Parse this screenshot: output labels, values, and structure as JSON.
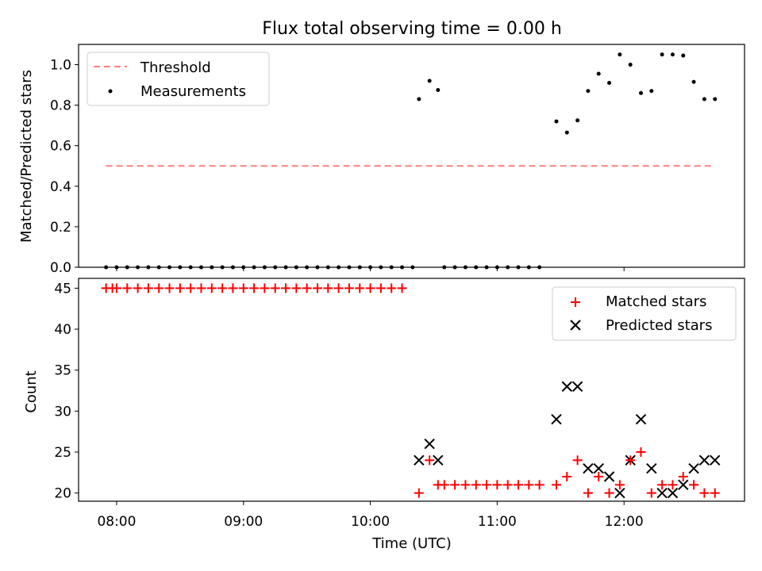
{
  "title": "Flux total observing time = 0.00 h",
  "xlabel": "Time (UTC)",
  "x_tick_labels": [
    "08:00",
    "09:00",
    "10:00",
    "11:00",
    "12:00"
  ],
  "top_ylabel": "Matched/Predicted stars",
  "bottom_ylabel": "Count",
  "top_legend": {
    "threshold": "Threshold",
    "measurements": "Measurements"
  },
  "bottom_legend": {
    "matched": "Matched stars",
    "predicted": "Predicted stars"
  },
  "colors": {
    "threshold": "#ff7f7f",
    "measurements": "#000000",
    "matched": "#ff0000",
    "predicted": "#000000"
  },
  "chart_data": [
    {
      "type": "scatter",
      "title": "Flux total observing time = 0.00 h",
      "ylabel": "Matched/Predicted stars",
      "xlim": [
        "07:42",
        "12:57"
      ],
      "ylim": [
        0,
        1.1
      ],
      "y_ticks": [
        0.0,
        0.2,
        0.4,
        0.6,
        0.8,
        1.0
      ],
      "x_ticks": [
        "08:00",
        "09:00",
        "10:00",
        "11:00",
        "12:00"
      ],
      "legend_position": "top-left",
      "threshold": {
        "name": "Threshold",
        "style": "dashed",
        "y": 0.5,
        "x_range": [
          "07:55",
          "12:42"
        ]
      },
      "measurements": {
        "name": "Measurements",
        "x": [
          "07:55",
          "08:00",
          "08:05",
          "08:10",
          "08:15",
          "08:20",
          "08:25",
          "08:30",
          "08:35",
          "08:40",
          "08:45",
          "08:50",
          "08:55",
          "09:00",
          "09:05",
          "09:10",
          "09:15",
          "09:20",
          "09:25",
          "09:30",
          "09:35",
          "09:40",
          "09:45",
          "09:50",
          "09:55",
          "10:00",
          "10:05",
          "10:10",
          "10:15",
          "10:20",
          "10:23",
          "10:28",
          "10:32",
          "10:35",
          "10:40",
          "10:45",
          "10:50",
          "10:55",
          "11:00",
          "11:05",
          "11:10",
          "11:15",
          "11:20",
          "11:28",
          "11:33",
          "11:38",
          "11:43",
          "11:48",
          "11:53",
          "11:58",
          "12:03",
          "12:08",
          "12:13",
          "12:18",
          "12:23",
          "12:28",
          "12:33",
          "12:38",
          "12:43"
        ],
        "y": [
          0,
          0,
          0,
          0,
          0,
          0,
          0,
          0,
          0,
          0,
          0,
          0,
          0,
          0,
          0,
          0,
          0,
          0,
          0,
          0,
          0,
          0,
          0,
          0,
          0,
          0,
          0,
          0,
          0,
          0,
          0.83,
          0.92,
          0.875,
          0,
          0,
          0,
          0,
          0,
          0,
          0,
          0,
          0,
          0,
          0.72,
          0.665,
          0.725,
          0.87,
          0.955,
          0.91,
          1.05,
          1.0,
          0.86,
          0.87,
          1.05,
          1.05,
          1.045,
          0.915,
          0.83,
          0.83
        ]
      }
    },
    {
      "type": "scatter",
      "xlabel": "Time (UTC)",
      "ylabel": "Count",
      "xlim": [
        "07:42",
        "12:57"
      ],
      "ylim": [
        19,
        46.2
      ],
      "y_ticks": [
        20,
        25,
        30,
        35,
        40,
        45
      ],
      "x_ticks": [
        "08:00",
        "09:00",
        "10:00",
        "11:00",
        "12:00"
      ],
      "legend_position": "top-right",
      "series": [
        {
          "name": "Matched stars",
          "marker": "plus",
          "x": [
            "07:55",
            "07:58",
            "08:00",
            "08:05",
            "08:10",
            "08:15",
            "08:20",
            "08:25",
            "08:30",
            "08:35",
            "08:40",
            "08:45",
            "08:50",
            "08:55",
            "09:00",
            "09:05",
            "09:10",
            "09:15",
            "09:20",
            "09:25",
            "09:30",
            "09:35",
            "09:40",
            "09:45",
            "09:50",
            "09:55",
            "10:00",
            "10:05",
            "10:10",
            "10:15",
            "10:23",
            "10:28",
            "10:32",
            "10:35",
            "10:40",
            "10:45",
            "10:50",
            "10:55",
            "11:00",
            "11:05",
            "11:10",
            "11:15",
            "11:20",
            "11:28",
            "11:33",
            "11:38",
            "11:43",
            "11:48",
            "11:53",
            "11:58",
            "12:03",
            "12:08",
            "12:13",
            "12:18",
            "12:23",
            "12:28",
            "12:33",
            "12:38",
            "12:43"
          ],
          "y": [
            45,
            45,
            45,
            45,
            45,
            45,
            45,
            45,
            45,
            45,
            45,
            45,
            45,
            45,
            45,
            45,
            45,
            45,
            45,
            45,
            45,
            45,
            45,
            45,
            45,
            45,
            45,
            45,
            45,
            45,
            20,
            24,
            21,
            21,
            21,
            21,
            21,
            21,
            21,
            21,
            21,
            21,
            21,
            21,
            22,
            24,
            20,
            22,
            20,
            21,
            24,
            25,
            20,
            21,
            21,
            22,
            21,
            20,
            20
          ]
        },
        {
          "name": "Predicted stars",
          "marker": "x",
          "x": [
            "10:23",
            "10:28",
            "10:32",
            "11:28",
            "11:33",
            "11:38",
            "11:43",
            "11:48",
            "11:53",
            "11:58",
            "12:03",
            "12:08",
            "12:13",
            "12:18",
            "12:23",
            "12:28",
            "12:33",
            "12:38",
            "12:43"
          ],
          "y": [
            24,
            26,
            24,
            29,
            33,
            33,
            23,
            23,
            22,
            20,
            24,
            29,
            23,
            20,
            20,
            21,
            23,
            24,
            24
          ]
        }
      ]
    }
  ]
}
